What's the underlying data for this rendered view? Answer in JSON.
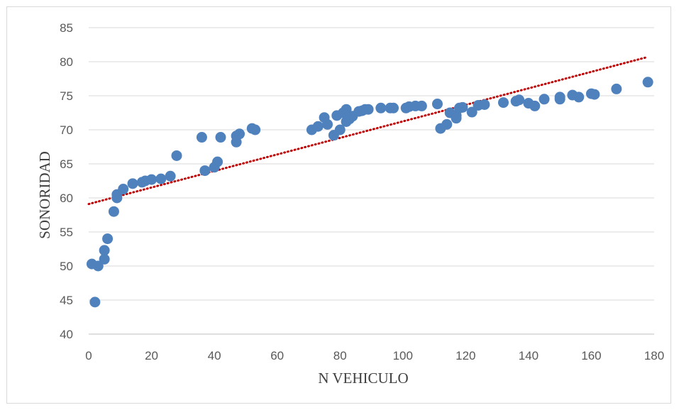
{
  "chart_data": {
    "type": "scatter",
    "xlabel": "N VEHICULO",
    "ylabel": "SONORIDAD",
    "xlim": [
      0,
      180
    ],
    "ylim": [
      40,
      85
    ],
    "x_ticks": [
      0,
      20,
      40,
      60,
      80,
      100,
      120,
      140,
      160,
      180
    ],
    "y_ticks": [
      40,
      45,
      50,
      55,
      60,
      65,
      70,
      75,
      80,
      85
    ],
    "grid": "horizontal",
    "legend": "none",
    "series": [
      {
        "color": "#4f81bd",
        "points": [
          [
            1,
            50.3
          ],
          [
            2,
            44.7
          ],
          [
            3,
            50.0
          ],
          [
            5,
            51.0
          ],
          [
            5,
            52.3
          ],
          [
            6,
            54.0
          ],
          [
            8,
            58.0
          ],
          [
            9,
            60.0
          ],
          [
            9,
            60.5
          ],
          [
            11,
            61.3
          ],
          [
            14,
            62.1
          ],
          [
            17,
            62.3
          ],
          [
            18,
            62.5
          ],
          [
            20,
            62.7
          ],
          [
            23,
            62.8
          ],
          [
            26,
            63.2
          ],
          [
            28,
            66.2
          ],
          [
            36,
            68.9
          ],
          [
            37,
            64.0
          ],
          [
            40,
            64.5
          ],
          [
            41,
            65.3
          ],
          [
            42,
            68.9
          ],
          [
            47,
            69.1
          ],
          [
            47,
            68.2
          ],
          [
            48,
            69.4
          ],
          [
            52,
            70.2
          ],
          [
            53,
            70.0
          ],
          [
            71,
            70.0
          ],
          [
            73,
            70.5
          ],
          [
            75,
            71.8
          ],
          [
            76,
            70.8
          ],
          [
            78,
            69.2
          ],
          [
            79,
            72.1
          ],
          [
            80,
            70.0
          ],
          [
            81,
            72.5
          ],
          [
            82,
            73.0
          ],
          [
            82,
            71.2
          ],
          [
            83,
            71.6
          ],
          [
            84,
            72.0
          ],
          [
            86,
            72.7
          ],
          [
            87,
            72.8
          ],
          [
            88,
            73.0
          ],
          [
            89,
            73.0
          ],
          [
            93,
            73.2
          ],
          [
            96,
            73.2
          ],
          [
            97,
            73.2
          ],
          [
            101,
            73.2
          ],
          [
            102,
            73.4
          ],
          [
            104,
            73.5
          ],
          [
            106,
            73.5
          ],
          [
            111,
            73.8
          ],
          [
            112,
            70.2
          ],
          [
            114,
            70.8
          ],
          [
            115,
            72.5
          ],
          [
            117,
            72.1
          ],
          [
            117,
            71.7
          ],
          [
            118,
            73.2
          ],
          [
            119,
            73.3
          ],
          [
            122,
            72.6
          ],
          [
            124,
            73.6
          ],
          [
            126,
            73.7
          ],
          [
            132,
            74.0
          ],
          [
            136,
            74.2
          ],
          [
            137,
            74.4
          ],
          [
            140,
            73.9
          ],
          [
            142,
            73.5
          ],
          [
            145,
            74.5
          ],
          [
            150,
            74.5
          ],
          [
            150,
            74.8
          ],
          [
            154,
            75.1
          ],
          [
            156,
            74.8
          ],
          [
            160,
            75.3
          ],
          [
            161,
            75.2
          ],
          [
            168,
            76.0
          ],
          [
            178,
            77.0
          ]
        ]
      }
    ],
    "trendline": {
      "type": "linear",
      "style": "dotted",
      "color": "#c00000",
      "x": [
        0,
        178
      ],
      "y": [
        59.1,
        80.7
      ]
    }
  }
}
